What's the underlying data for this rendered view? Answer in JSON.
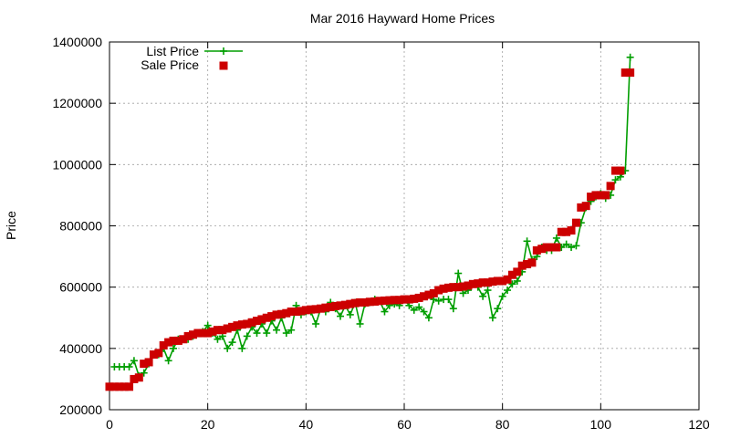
{
  "chart_data": {
    "type": "scatter",
    "title": "Mar 2016 Hayward Home Prices",
    "xlabel": "",
    "ylabel": "Price",
    "xlim": [
      0,
      120
    ],
    "ylim": [
      200000,
      1400000
    ],
    "x_ticks": [
      "0",
      "20",
      "40",
      "60",
      "80",
      "100",
      "120"
    ],
    "y_ticks": [
      "200000",
      "400000",
      "600000",
      "800000",
      "1000000",
      "1200000",
      "1400000"
    ],
    "x_tick_values": [
      0,
      20,
      40,
      60,
      80,
      100,
      120
    ],
    "y_tick_values": [
      200000,
      400000,
      600000,
      800000,
      1000000,
      1200000,
      1400000
    ],
    "grid": true,
    "legend_position": "top-left",
    "series": [
      {
        "name": "List Price",
        "style": "line-points",
        "marker": "plus",
        "color": "#009e00",
        "x": [
          1,
          2,
          3,
          4,
          5,
          6,
          7,
          8,
          9,
          10,
          11,
          12,
          13,
          14,
          15,
          16,
          17,
          18,
          19,
          20,
          21,
          22,
          23,
          24,
          25,
          26,
          27,
          28,
          29,
          30,
          31,
          32,
          33,
          34,
          35,
          36,
          37,
          38,
          39,
          40,
          41,
          42,
          43,
          44,
          45,
          46,
          47,
          48,
          49,
          50,
          51,
          52,
          53,
          54,
          55,
          56,
          57,
          58,
          59,
          60,
          61,
          62,
          63,
          64,
          65,
          66,
          67,
          68,
          69,
          70,
          71,
          72,
          73,
          74,
          75,
          76,
          77,
          78,
          79,
          80,
          81,
          82,
          83,
          84,
          85,
          86,
          87,
          88,
          89,
          90,
          91,
          92,
          93,
          94,
          95,
          96,
          97,
          98,
          99,
          100,
          101,
          102,
          103,
          104,
          105,
          106
        ],
        "y": [
          340000,
          340000,
          340000,
          340000,
          360000,
          310000,
          320000,
          350000,
          380000,
          380000,
          400000,
          360000,
          400000,
          430000,
          430000,
          430000,
          440000,
          450000,
          455000,
          475000,
          450000,
          430000,
          440000,
          400000,
          420000,
          460000,
          400000,
          440000,
          470000,
          450000,
          480000,
          450000,
          490000,
          460000,
          500000,
          450000,
          460000,
          540000,
          510000,
          520000,
          520000,
          480000,
          530000,
          520000,
          550000,
          530000,
          505000,
          540000,
          510000,
          550000,
          480000,
          545000,
          550000,
          560000,
          555000,
          520000,
          540000,
          545000,
          540000,
          560000,
          540000,
          525000,
          535000,
          520000,
          500000,
          560000,
          555000,
          560000,
          560000,
          530000,
          645000,
          580000,
          590000,
          610000,
          600000,
          570000,
          590000,
          500000,
          530000,
          570000,
          590000,
          610000,
          620000,
          650000,
          750000,
          690000,
          700000,
          730000,
          720000,
          720000,
          760000,
          730000,
          740000,
          730000,
          735000,
          810000,
          860000,
          880000,
          895000,
          905000,
          890000,
          900000,
          950000,
          960000,
          980000,
          1350000
        ]
      },
      {
        "name": "Sale Price",
        "style": "points",
        "marker": "square",
        "color": "#cc0000",
        "x": [
          0,
          1,
          2,
          3,
          4,
          5,
          6,
          7,
          8,
          9,
          10,
          11,
          12,
          13,
          14,
          15,
          16,
          17,
          18,
          19,
          20,
          21,
          22,
          23,
          24,
          25,
          26,
          27,
          28,
          29,
          30,
          31,
          32,
          33,
          34,
          35,
          36,
          37,
          38,
          39,
          40,
          41,
          42,
          43,
          44,
          45,
          46,
          47,
          48,
          49,
          50,
          51,
          52,
          53,
          54,
          55,
          56,
          57,
          58,
          59,
          60,
          61,
          62,
          63,
          64,
          65,
          66,
          67,
          68,
          69,
          70,
          71,
          72,
          73,
          74,
          75,
          76,
          77,
          78,
          79,
          80,
          81,
          82,
          83,
          84,
          85,
          86,
          87,
          88,
          89,
          90,
          91,
          92,
          93,
          94,
          95,
          96,
          97,
          98,
          99,
          100,
          101,
          102,
          103,
          104,
          105,
          106
        ],
        "y": [
          275000,
          275000,
          275000,
          275000,
          275000,
          300000,
          305000,
          350000,
          355000,
          380000,
          385000,
          410000,
          420000,
          425000,
          425000,
          430000,
          440000,
          445000,
          450000,
          450000,
          450000,
          455000,
          460000,
          460000,
          465000,
          470000,
          475000,
          478000,
          480000,
          485000,
          490000,
          495000,
          500000,
          505000,
          510000,
          512000,
          515000,
          520000,
          520000,
          522000,
          525000,
          527000,
          528000,
          530000,
          533000,
          535000,
          538000,
          540000,
          542000,
          545000,
          548000,
          550000,
          550000,
          552000,
          553000,
          555000,
          556000,
          557000,
          558000,
          558000,
          560000,
          560000,
          562000,
          565000,
          570000,
          575000,
          580000,
          590000,
          595000,
          598000,
          600000,
          600000,
          602000,
          605000,
          610000,
          612000,
          615000,
          615000,
          618000,
          620000,
          620000,
          625000,
          640000,
          650000,
          670000,
          675000,
          680000,
          720000,
          725000,
          730000,
          730000,
          730000,
          780000,
          780000,
          785000,
          810000,
          860000,
          865000,
          895000,
          900000,
          900000,
          900000,
          930000,
          980000,
          980000,
          1300000,
          1300000
        ]
      }
    ]
  }
}
